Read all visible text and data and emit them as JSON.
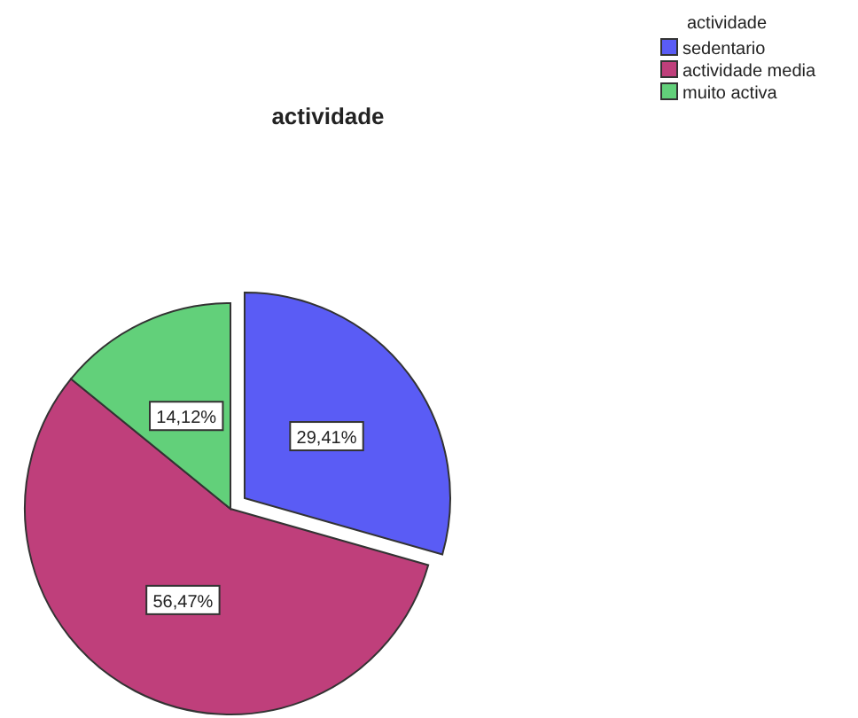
{
  "chart_data": {
    "type": "pie",
    "title": "actividade",
    "legend_title": "actividade",
    "legend": "top right",
    "categories": [
      "sedentario",
      "actividade media",
      "muito activa"
    ],
    "values": [
      29.41,
      56.47,
      14.12
    ],
    "value_labels": [
      "29,41%",
      "56,47%",
      "14,12%"
    ],
    "colors": [
      "#5a5cf5",
      "#bf3f7b",
      "#62d07a"
    ]
  }
}
